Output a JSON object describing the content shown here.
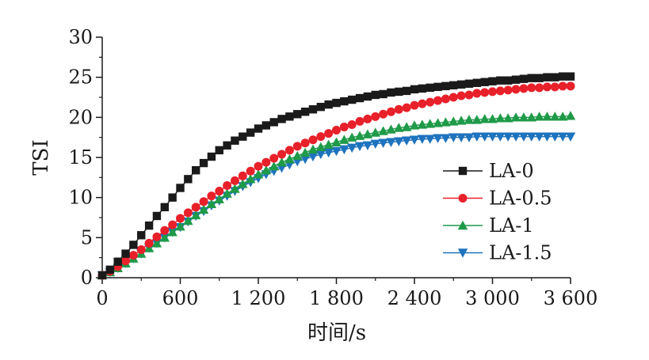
{
  "chart_data": {
    "type": "line",
    "title": "",
    "xlabel": "时间/s",
    "ylabel": "TSI",
    "xlim": [
      0,
      3600
    ],
    "ylim": [
      0,
      30
    ],
    "x_ticks": [
      0,
      600,
      1200,
      1800,
      2400,
      3000,
      3600
    ],
    "x_tick_labels": [
      "0",
      "600",
      "1 200",
      "1 800",
      "2 400",
      "3 000",
      "3 600"
    ],
    "y_ticks": [
      0,
      5,
      10,
      15,
      20,
      25,
      30
    ],
    "y_tick_labels": [
      "0",
      "5",
      "10",
      "15",
      "20",
      "25",
      "30"
    ],
    "grid": false,
    "legend_position": "right",
    "x": [
      0,
      60,
      120,
      180,
      240,
      300,
      360,
      420,
      480,
      540,
      600,
      660,
      720,
      780,
      840,
      900,
      960,
      1020,
      1080,
      1140,
      1200,
      1260,
      1320,
      1380,
      1440,
      1500,
      1560,
      1620,
      1680,
      1740,
      1800,
      1860,
      1920,
      1980,
      2040,
      2100,
      2160,
      2220,
      2280,
      2340,
      2400,
      2460,
      2520,
      2580,
      2640,
      2700,
      2760,
      2820,
      2880,
      2940,
      3000,
      3060,
      3120,
      3180,
      3240,
      3300,
      3360,
      3420,
      3480,
      3540,
      3600
    ],
    "series": [
      {
        "name": "LA-0",
        "color": "#1a1a1a",
        "marker": "square",
        "values": [
          0.3,
          1.0,
          2.0,
          3.0,
          4.1,
          5.3,
          6.5,
          7.7,
          8.8,
          10.0,
          11.2,
          12.3,
          13.4,
          14.3,
          15.1,
          15.9,
          16.5,
          17.1,
          17.6,
          18.1,
          18.6,
          19.0,
          19.4,
          19.8,
          20.1,
          20.4,
          20.7,
          21.0,
          21.3,
          21.6,
          21.8,
          22.0,
          22.2,
          22.4,
          22.6,
          22.8,
          22.9,
          23.1,
          23.2,
          23.3,
          23.5,
          23.6,
          23.7,
          23.8,
          23.9,
          24.0,
          24.1,
          24.2,
          24.3,
          24.4,
          24.5,
          24.6,
          24.6,
          24.7,
          24.8,
          24.9,
          24.9,
          25.0,
          25.0,
          25.1,
          25.1
        ]
      },
      {
        "name": "LA-0.5",
        "color": "#e8202a",
        "marker": "circle",
        "values": [
          0.3,
          0.8,
          1.4,
          2.1,
          2.8,
          3.5,
          4.3,
          5.1,
          5.9,
          6.6,
          7.4,
          8.1,
          8.8,
          9.5,
          10.2,
          10.8,
          11.5,
          12.1,
          12.7,
          13.3,
          13.9,
          14.4,
          14.9,
          15.4,
          15.9,
          16.4,
          16.8,
          17.2,
          17.6,
          18.0,
          18.4,
          18.8,
          19.1,
          19.5,
          19.8,
          20.1,
          20.4,
          20.7,
          21.0,
          21.2,
          21.5,
          21.7,
          21.9,
          22.1,
          22.3,
          22.5,
          22.7,
          22.8,
          23.0,
          23.1,
          23.2,
          23.3,
          23.4,
          23.5,
          23.6,
          23.7,
          23.7,
          23.8,
          23.8,
          23.9,
          23.9
        ]
      },
      {
        "name": "LA-1",
        "color": "#1f9a48",
        "marker": "triangle-up",
        "values": [
          0.3,
          0.7,
          1.2,
          1.8,
          2.4,
          3.0,
          3.7,
          4.3,
          5.0,
          5.7,
          6.4,
          7.1,
          7.8,
          8.5,
          9.2,
          9.8,
          10.5,
          11.1,
          11.7,
          12.3,
          12.9,
          13.4,
          13.9,
          14.4,
          14.8,
          15.2,
          15.6,
          16.0,
          16.3,
          16.6,
          16.9,
          17.2,
          17.5,
          17.7,
          17.9,
          18.1,
          18.3,
          18.5,
          18.7,
          18.8,
          19.0,
          19.1,
          19.2,
          19.3,
          19.4,
          19.5,
          19.6,
          19.7,
          19.7,
          19.8,
          19.8,
          19.9,
          19.9,
          20.0,
          20.0,
          20.0,
          20.1,
          20.1,
          20.1,
          20.1,
          20.2
        ]
      },
      {
        "name": "LA-1.5",
        "color": "#1e73be",
        "marker": "triangle-down",
        "values": [
          0.3,
          0.7,
          1.2,
          1.8,
          2.4,
          3.0,
          3.7,
          4.3,
          5.0,
          5.7,
          6.3,
          7.0,
          7.7,
          8.3,
          9.0,
          9.6,
          10.2,
          10.8,
          11.4,
          11.9,
          12.4,
          12.9,
          13.3,
          13.7,
          14.1,
          14.5,
          14.8,
          15.1,
          15.4,
          15.6,
          15.8,
          16.0,
          16.2,
          16.4,
          16.5,
          16.7,
          16.8,
          16.9,
          17.0,
          17.1,
          17.2,
          17.3,
          17.3,
          17.4,
          17.4,
          17.5,
          17.5,
          17.5,
          17.6,
          17.6,
          17.6,
          17.6,
          17.6,
          17.6,
          17.6,
          17.6,
          17.6,
          17.6,
          17.6,
          17.6,
          17.6
        ]
      }
    ]
  }
}
